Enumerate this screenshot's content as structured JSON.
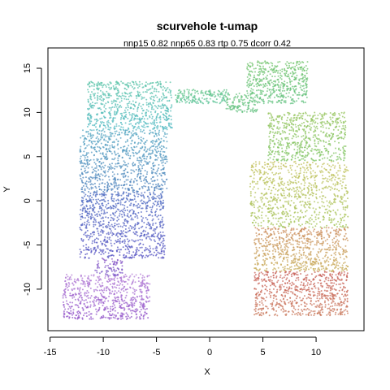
{
  "chart_data": {
    "type": "scatter",
    "title": "scurvehole t-umap",
    "subtitle": "nnp15 0.82 nnp65 0.83 rtp 0.75 dcorr 0.42",
    "xlabel": "X",
    "ylabel": "Y",
    "xlim": [
      -15.2,
      14.5
    ],
    "ylim": [
      -14.7,
      17.3
    ],
    "xticks": [
      -15,
      -10,
      -5,
      0,
      5,
      10
    ],
    "yticks": [
      -10,
      -5,
      0,
      5,
      10,
      15
    ],
    "grid": false,
    "point_size": 1,
    "regions": [
      {
        "name": "",
        "x": [
          -13.8,
          -5.6
        ],
        "y": [
          -13.4,
          -8.3
        ],
        "density": 650,
        "color_from": "#8e4fc7",
        "color_to": "#b47ed6"
      },
      {
        "name": "",
        "x": [
          -10.8,
          -8.2
        ],
        "y": [
          -8.5,
          -6.5
        ],
        "density": 80,
        "color_from": "#7a5ac8",
        "color_to": "#8b57c6"
      },
      {
        "name": "",
        "x": [
          -12.2,
          -4.2
        ],
        "y": [
          -6.5,
          1.0
        ],
        "density": 900,
        "color_from": "#5a56c4",
        "color_to": "#4c6cc0"
      },
      {
        "name": "",
        "x": [
          -12.2,
          -4.0
        ],
        "y": [
          1.0,
          8.0
        ],
        "density": 850,
        "color_from": "#4e80bc",
        "color_to": "#56a8c2"
      },
      {
        "name": "",
        "x": [
          -11.5,
          -3.5
        ],
        "y": [
          8.0,
          13.5
        ],
        "density": 700,
        "color_from": "#52b9c4",
        "color_to": "#5cc4a8"
      },
      {
        "name": "",
        "x": [
          -3.2,
          1.8
        ],
        "y": [
          11.0,
          12.6
        ],
        "density": 180,
        "color_from": "#5ec49a",
        "color_to": "#63c488"
      },
      {
        "name": "",
        "x": [
          1.5,
          4.5
        ],
        "y": [
          10.0,
          12.2
        ],
        "density": 120,
        "color_from": "#65c282",
        "color_to": "#6ac47e"
      },
      {
        "name": "",
        "x": [
          3.5,
          9.2
        ],
        "y": [
          11.0,
          15.8
        ],
        "density": 500,
        "color_from": "#62c280",
        "color_to": "#74c46c"
      },
      {
        "name": "",
        "x": [
          5.5,
          12.8
        ],
        "y": [
          4.5,
          10.0
        ],
        "density": 600,
        "color_from": "#7dc464",
        "color_to": "#96c45c"
      },
      {
        "name": "",
        "x": [
          3.8,
          13.0
        ],
        "y": [
          -3.0,
          4.5
        ],
        "density": 800,
        "color_from": "#a3c45a",
        "color_to": "#c4c05c"
      },
      {
        "name": "",
        "x": [
          4.2,
          13.0
        ],
        "y": [
          -8.0,
          -3.0
        ],
        "density": 700,
        "color_from": "#c8b05c",
        "color_to": "#cc8a5c"
      },
      {
        "name": "",
        "x": [
          4.2,
          13.0
        ],
        "y": [
          -13.0,
          -8.0
        ],
        "density": 700,
        "color_from": "#ca7a5c",
        "color_to": "#c8605a"
      }
    ]
  }
}
